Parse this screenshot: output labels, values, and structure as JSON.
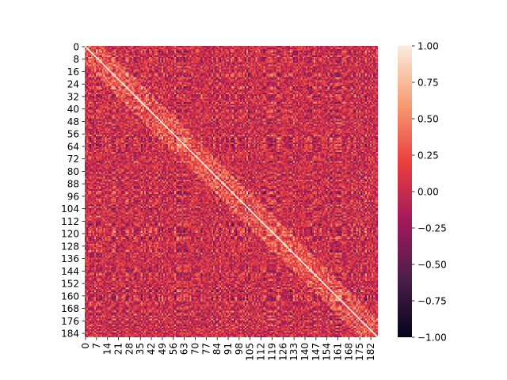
{
  "chart_data": {
    "type": "heatmap",
    "title": "",
    "xlabel": "",
    "ylabel": "",
    "n_rows": 187,
    "n_cols": 187,
    "value_range": [
      -1.0,
      1.0
    ],
    "diagonal_value": 1.0,
    "x_tick_labels": [
      "0",
      "7",
      "14",
      "21",
      "28",
      "35",
      "42",
      "49",
      "56",
      "63",
      "70",
      "77",
      "84",
      "91",
      "98",
      "105",
      "112",
      "119",
      "126",
      "133",
      "140",
      "147",
      "154",
      "161",
      "168",
      "175",
      "182"
    ],
    "y_tick_labels": [
      "0",
      "8",
      "16",
      "24",
      "32",
      "40",
      "48",
      "56",
      "64",
      "72",
      "80",
      "88",
      "96",
      "104",
      "112",
      "120",
      "128",
      "136",
      "144",
      "152",
      "160",
      "168",
      "176",
      "184"
    ],
    "colorbar": {
      "min": -1.0,
      "max": 1.0,
      "ticks": [
        {
          "value": 1.0,
          "label": "1.00"
        },
        {
          "value": 0.75,
          "label": "0.75"
        },
        {
          "value": 0.5,
          "label": "0.50"
        },
        {
          "value": 0.25,
          "label": "0.25"
        },
        {
          "value": 0.0,
          "label": "0.00"
        },
        {
          "value": -0.25,
          "label": "−0.25"
        },
        {
          "value": -0.5,
          "label": "−0.50"
        },
        {
          "value": -0.75,
          "label": "−0.75"
        },
        {
          "value": -1.0,
          "label": "−1.00"
        }
      ]
    },
    "colormap": "rocket",
    "colormap_stops": [
      "#03051a",
      "#4c1d4b",
      "#a11a5b",
      "#e83f3f",
      "#f69c73",
      "#faebdd"
    ]
  }
}
